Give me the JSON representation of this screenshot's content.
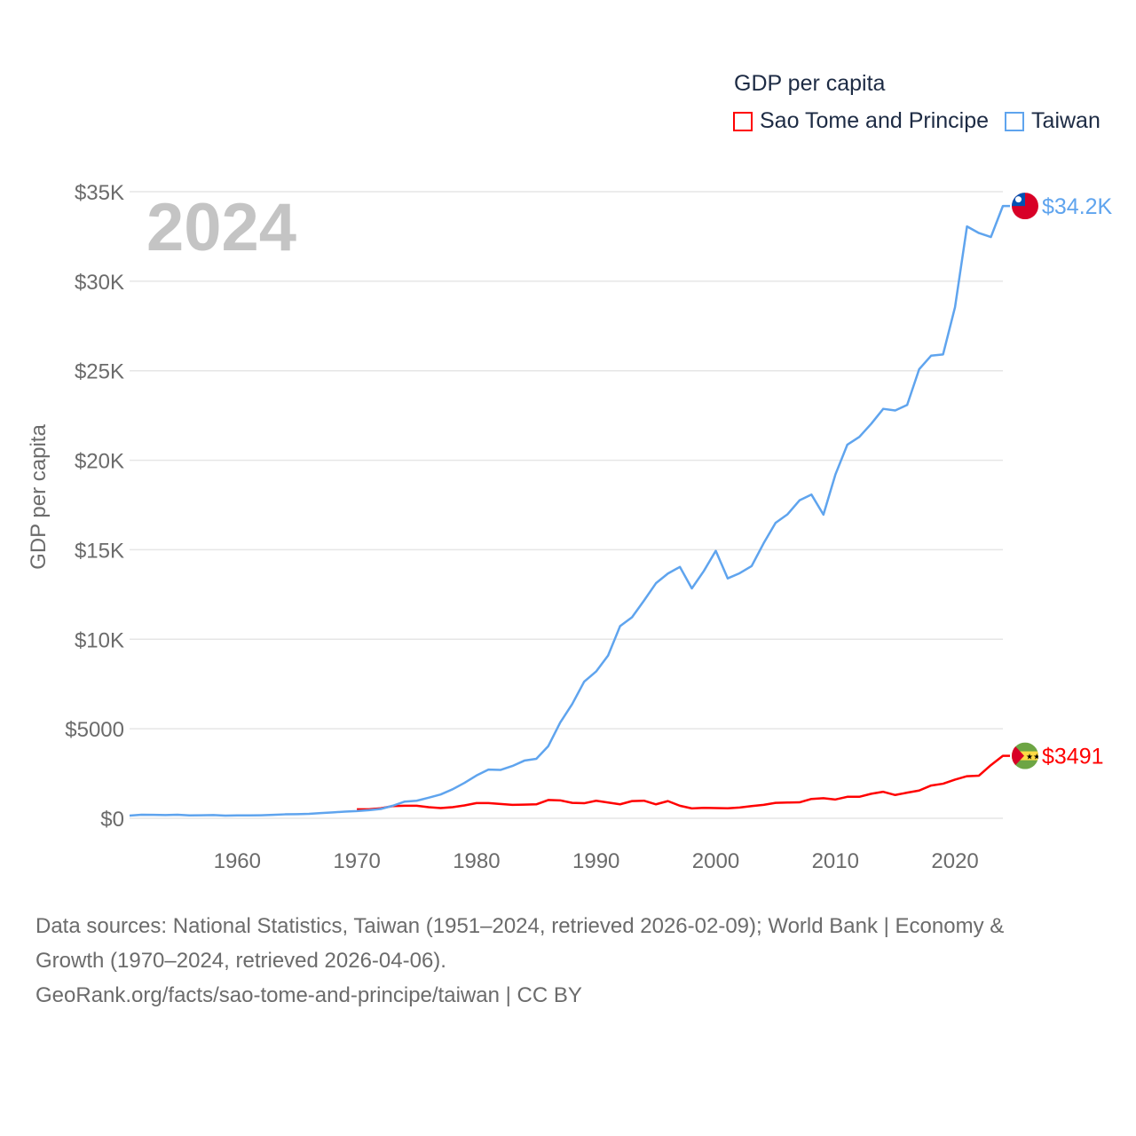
{
  "chart_data": {
    "type": "line",
    "title": "GDP per capita",
    "ylabel": "GDP per capita",
    "xlabel": "",
    "year_overlay": "2024",
    "ylim": [
      0,
      35000
    ],
    "xlim": [
      1951,
      2024
    ],
    "grid": true,
    "legend_placement": "top-right",
    "y_ticks": [
      {
        "value": 0,
        "label": "$0"
      },
      {
        "value": 5000,
        "label": "$5000"
      },
      {
        "value": 10000,
        "label": "$10K"
      },
      {
        "value": 15000,
        "label": "$15K"
      },
      {
        "value": 20000,
        "label": "$20K"
      },
      {
        "value": 25000,
        "label": "$25K"
      },
      {
        "value": 30000,
        "label": "$30K"
      },
      {
        "value": 35000,
        "label": "$35K"
      }
    ],
    "x_ticks": [
      {
        "value": 1960,
        "label": "1960"
      },
      {
        "value": 1970,
        "label": "1970"
      },
      {
        "value": 1980,
        "label": "1980"
      },
      {
        "value": 1990,
        "label": "1990"
      },
      {
        "value": 2000,
        "label": "2000"
      },
      {
        "value": 2010,
        "label": "2010"
      },
      {
        "value": 2020,
        "label": "2020"
      }
    ],
    "series": [
      {
        "name": "Sao Tome and Principe",
        "color": "#ff0000",
        "flag": "sao-tome-flag",
        "end_label": "$3491",
        "start_year": 1970,
        "values": [
          500,
          500,
          560,
          680,
          700,
          700,
          620,
          570,
          620,
          720,
          850,
          850,
          800,
          750,
          760,
          780,
          1020,
          1000,
          860,
          840,
          980,
          880,
          780,
          960,
          980,
          780,
          960,
          700,
          550,
          580,
          570,
          560,
          600,
          680,
          750,
          860,
          880,
          890,
          1080,
          1120,
          1050,
          1200,
          1200,
          1370,
          1480,
          1300,
          1430,
          1550,
          1830,
          1930,
          2160,
          2350,
          2380,
          2970,
          3491
        ]
      },
      {
        "name": "Taiwan",
        "color": "#5fa4ee",
        "flag": "taiwan-flag",
        "end_label": "$34.2K",
        "start_year": 1951,
        "values": [
          150,
          200,
          190,
          180,
          200,
          160,
          170,
          180,
          150,
          160,
          160,
          170,
          190,
          220,
          230,
          250,
          290,
          330,
          370,
          400,
          450,
          520,
          700,
          930,
          980,
          1150,
          1330,
          1620,
          1980,
          2390,
          2720,
          2700,
          2920,
          3220,
          3320,
          4030,
          5350,
          6380,
          7630,
          8200,
          9090,
          10730,
          11230,
          12160,
          13130,
          13670,
          14040,
          12840,
          13810,
          14940,
          13400,
          13690,
          14090,
          15360,
          16500,
          16980,
          17760,
          18080,
          16960,
          19200,
          20870,
          21300,
          22040,
          22870,
          22780,
          23090,
          25080,
          25840,
          25910,
          28550,
          33060,
          32690,
          32470,
          34200
        ]
      }
    ]
  },
  "footer": {
    "line1": "Data sources: National Statistics, Taiwan (1951–2024, retrieved 2026-02-09); World Bank | Economy &",
    "line2": "Growth (1970–2024, retrieved 2026-04-06).",
    "line3": "GeoRank.org/facts/sao-tome-and-principe/taiwan | CC BY"
  }
}
